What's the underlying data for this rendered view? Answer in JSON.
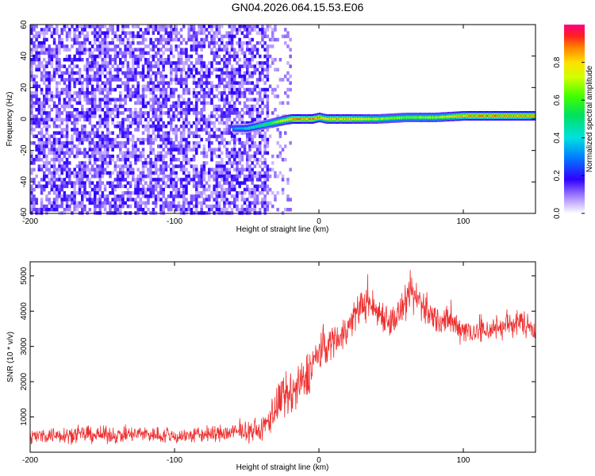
{
  "title": "GN04.2026.064.15.53.E06",
  "chart_data": [
    {
      "type": "heatmap",
      "xlabel": "Height of straight line (km)",
      "ylabel": "Frequency (Hz)",
      "xlim": [
        -200,
        150
      ],
      "ylim": [
        -60,
        60
      ],
      "xticks": [
        -200,
        -100,
        0,
        100
      ],
      "yticks": [
        -60,
        -40,
        -20,
        0,
        20,
        40,
        60
      ],
      "colorbar": {
        "label": "Normalized spectral amplitude",
        "range": [
          0,
          1
        ],
        "ticks": [
          0.0,
          0.2,
          0.4,
          0.6,
          0.8
        ]
      },
      "ridge": {
        "description_points_x": [
          -60,
          -50,
          -40,
          -35,
          -30,
          -20,
          -5,
          0,
          5,
          20,
          40,
          60,
          80,
          100,
          120,
          150
        ],
        "frequency_hz": [
          -6,
          -6,
          -4,
          -3,
          -2,
          0,
          0,
          1,
          0,
          0,
          0,
          1,
          1,
          2,
          2,
          2
        ],
        "amplitude": [
          0.35,
          0.45,
          0.55,
          0.6,
          0.7,
          0.9,
          0.95,
          0.9,
          0.85,
          0.9,
          0.75,
          0.7,
          0.75,
          0.9,
          0.95,
          0.9
        ]
      },
      "noise_region_x": [
        -200,
        -30
      ]
    },
    {
      "type": "line",
      "xlabel": "Height of straight line (km)",
      "ylabel": "SNR (10 * v/v)",
      "xlim": [
        -200,
        150
      ],
      "ylim": [
        0,
        5400
      ],
      "xticks": [
        -200,
        -100,
        0,
        100
      ],
      "yticks": [
        1000,
        2000,
        3000,
        4000,
        5000
      ],
      "color": "#ee3030",
      "series": [
        {
          "name": "SNR",
          "x": [
            -200,
            -180,
            -160,
            -140,
            -120,
            -100,
            -80,
            -60,
            -50,
            -40,
            -35,
            -30,
            -25,
            -20,
            -15,
            -10,
            -5,
            0,
            5,
            10,
            15,
            20,
            25,
            30,
            35,
            40,
            45,
            50,
            55,
            60,
            65,
            70,
            75,
            80,
            90,
            100,
            110,
            120,
            130,
            140,
            150
          ],
          "values": [
            450,
            500,
            500,
            480,
            520,
            450,
            500,
            550,
            600,
            600,
            900,
            1300,
            1500,
            1600,
            1800,
            2000,
            2500,
            2800,
            3000,
            3200,
            3300,
            3500,
            3900,
            4200,
            4200,
            4000,
            3900,
            3700,
            3900,
            4200,
            4400,
            4300,
            4000,
            3800,
            3700,
            3500,
            3400,
            3500,
            3600,
            3700,
            3500
          ],
          "noise_amplitude": [
            300,
            350,
            350,
            330,
            350,
            330,
            350,
            400,
            400,
            450,
            700,
            900,
            1000,
            1000,
            1000,
            1000,
            900,
            800,
            800,
            700,
            700,
            700,
            700,
            700,
            700,
            700,
            700,
            700,
            700,
            700,
            800,
            800,
            700,
            650,
            600,
            600,
            550,
            550,
            550,
            550,
            500
          ]
        }
      ]
    }
  ]
}
